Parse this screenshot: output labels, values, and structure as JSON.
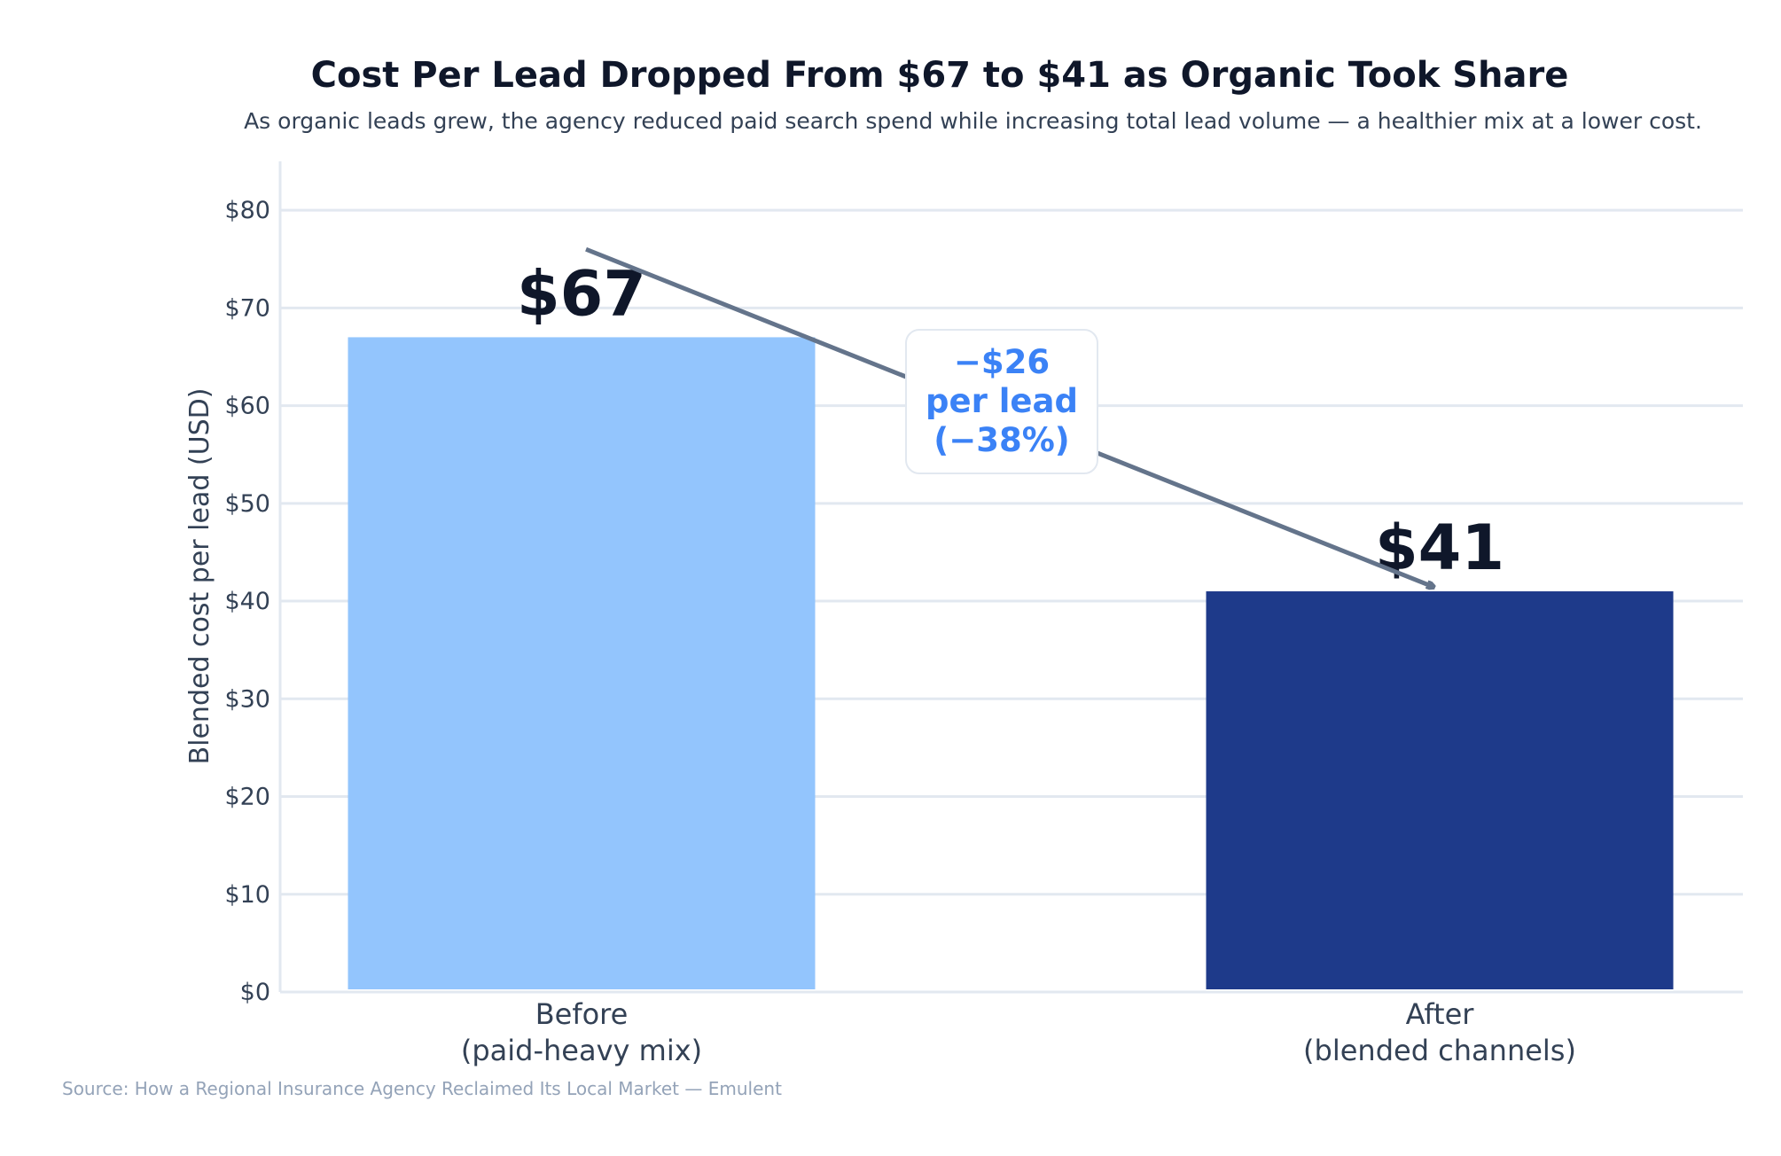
{
  "title": "Cost Per Lead Dropped From $67 to $41 as Organic Took Share",
  "subtitle": "As organic leads grew, the agency reduced paid search spend while increasing total lead volume — a healthier mix at a lower cost.",
  "source": "Source: How a Regional Insurance Agency Reclaimed Its Local Market — Emulent",
  "callout": {
    "line1": "−$26",
    "line2": "per lead",
    "line3": "(−38%)"
  },
  "chart_data": {
    "type": "bar",
    "title": "Cost Per Lead Dropped From $67 to $41 as Organic Took Share",
    "subtitle": "As organic leads grew, the agency reduced paid search spend while increasing total lead volume — a healthier mix at a lower cost.",
    "ylabel": "Blended cost per lead (USD)",
    "xlabel": "",
    "ylim": [
      0,
      85
    ],
    "yticks": [
      0,
      10,
      20,
      30,
      40,
      50,
      60,
      70,
      80
    ],
    "ytick_labels": [
      "$0",
      "$10",
      "$20",
      "$30",
      "$40",
      "$50",
      "$60",
      "$70",
      "$80"
    ],
    "grid": true,
    "categories": [
      {
        "line1": "Before",
        "line2": "(paid-heavy mix)"
      },
      {
        "line1": "After",
        "line2": "(blended channels)"
      }
    ],
    "values": [
      67,
      41
    ],
    "value_labels": [
      "$67",
      "$41"
    ],
    "colors": [
      "#93c5fd",
      "#1e3a8a"
    ],
    "arrow": {
      "from": 76,
      "to": 41,
      "color": "#64748b"
    }
  }
}
